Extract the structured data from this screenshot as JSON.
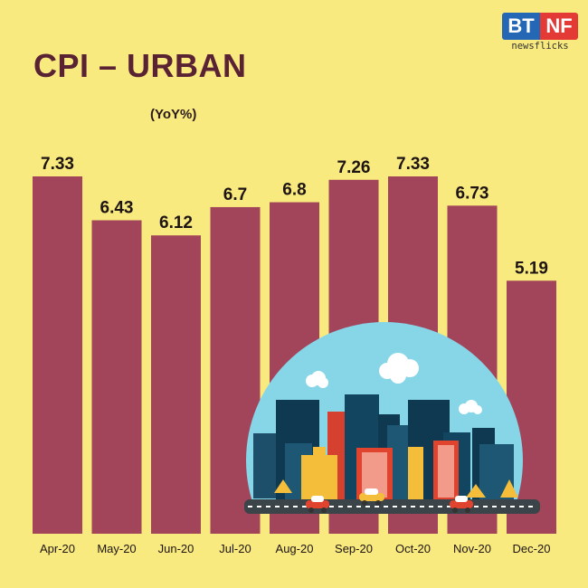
{
  "logo": {
    "left": "BT",
    "right": "NF",
    "tagline": "newsflicks"
  },
  "chart_data": {
    "type": "bar",
    "title": "CPI – URBAN",
    "subtitle": "(YoY%)",
    "categories": [
      "Apr-20",
      "May-20",
      "Jun-20",
      "Jul-20",
      "Aug-20",
      "Sep-20",
      "Oct-20",
      "Nov-20",
      "Dec-20"
    ],
    "values": [
      7.33,
      6.43,
      6.12,
      6.7,
      6.8,
      7.26,
      7.33,
      6.73,
      5.19
    ],
    "value_labels": [
      "7.33",
      "6.43",
      "6.12",
      "6.7",
      "6.8",
      "7.26",
      "7.33",
      "6.73",
      "5.19"
    ],
    "ylim": [
      0,
      7.33
    ],
    "grid": false,
    "colors": {
      "bar": "#a2445a",
      "background": "#f8ea7e",
      "title": "#5a2334"
    }
  }
}
